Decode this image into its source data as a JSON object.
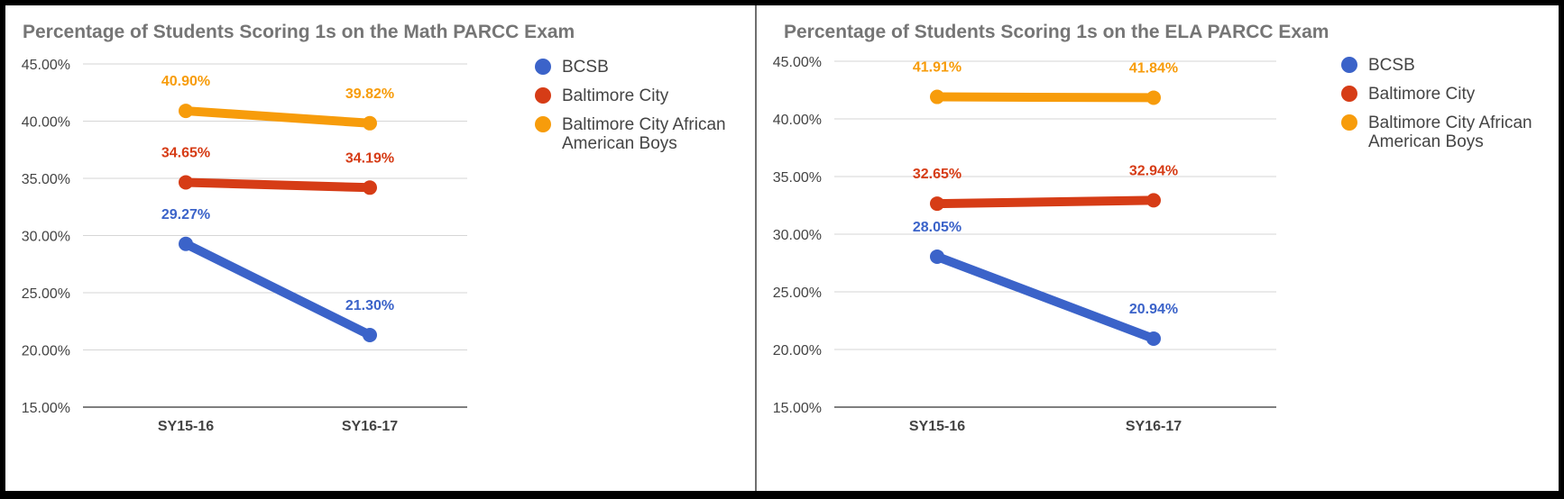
{
  "colors": {
    "BCSB": "#3b63c9",
    "Baltimore City": "#d63c16",
    "Baltimore City African American Boys": "#f79c0b",
    "grid": "#d6d6d6",
    "axis": "#333333"
  },
  "chart_data": [
    {
      "type": "line",
      "title": "Percentage of Students Scoring 1s on the Math PARCC Exam",
      "categories": [
        "SY15-16",
        "SY16-17"
      ],
      "yticks": [
        "15.00%",
        "20.00%",
        "25.00%",
        "30.00%",
        "35.00%",
        "40.00%",
        "45.00%"
      ],
      "ylim": [
        15,
        45
      ],
      "grid": true,
      "legend_position": "right",
      "legend": [
        "BCSB",
        "Baltimore City",
        "Baltimore City African American Boys"
      ],
      "series": [
        {
          "name": "BCSB",
          "values": [
            29.27,
            21.3
          ],
          "labels": [
            "29.27%",
            "21.30%"
          ]
        },
        {
          "name": "Baltimore City",
          "values": [
            34.65,
            34.19
          ],
          "labels": [
            "34.65%",
            "34.19%"
          ]
        },
        {
          "name": "Baltimore City African American Boys",
          "values": [
            40.9,
            39.82
          ],
          "labels": [
            "40.90%",
            "39.82%"
          ]
        }
      ]
    },
    {
      "type": "line",
      "title": "Percentage of Students Scoring 1s on the ELA PARCC Exam",
      "categories": [
        "SY15-16",
        "SY16-17"
      ],
      "yticks": [
        "15.00%",
        "20.00%",
        "25.00%",
        "30.00%",
        "35.00%",
        "40.00%",
        "45.00%"
      ],
      "ylim": [
        15,
        45
      ],
      "grid": true,
      "legend_position": "right",
      "legend": [
        "BCSB",
        "Baltimore City",
        "Baltimore City African American Boys"
      ],
      "series": [
        {
          "name": "BCSB",
          "values": [
            28.05,
            20.94
          ],
          "labels": [
            "28.05%",
            "20.94%"
          ]
        },
        {
          "name": "Baltimore City",
          "values": [
            32.65,
            32.94
          ],
          "labels": [
            "32.65%",
            "32.94%"
          ]
        },
        {
          "name": "Baltimore City African American Boys",
          "values": [
            41.91,
            41.84
          ],
          "labels": [
            "41.91%",
            "41.84%"
          ]
        }
      ]
    }
  ]
}
